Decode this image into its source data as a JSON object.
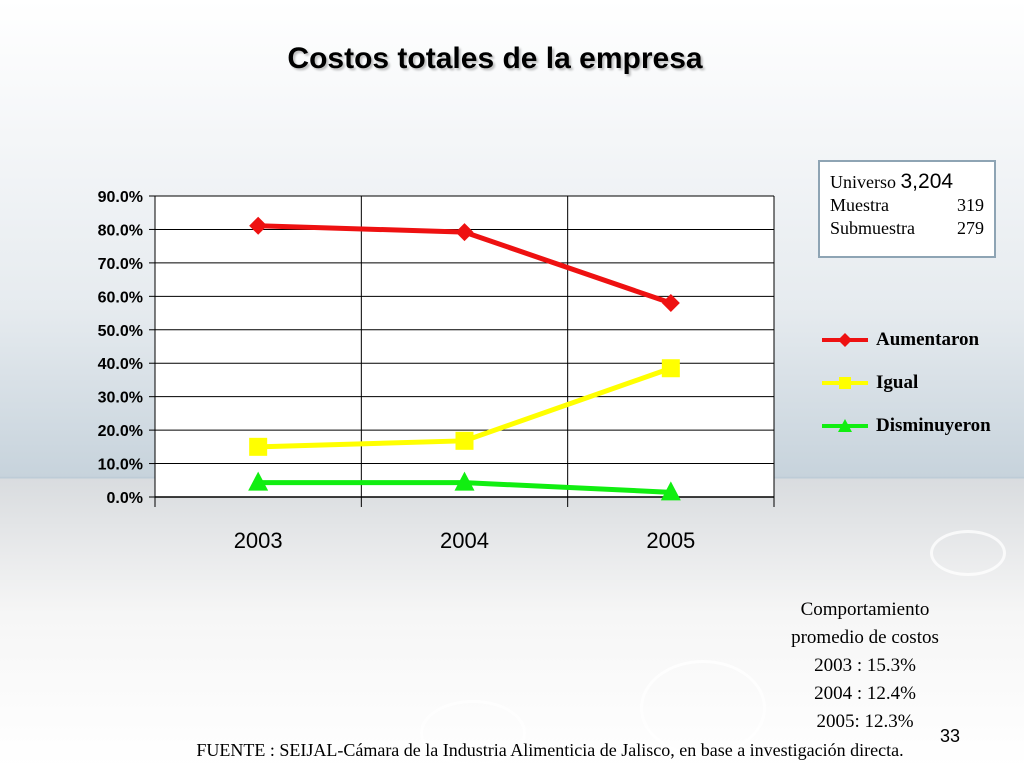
{
  "slide": {
    "title": "Costos totales de la empresa",
    "page_number": "33",
    "source": "FUENTE : SEIJAL-Cámara de la Industria Alimenticia de Jalisco,  en base a investigación directa."
  },
  "infobox": {
    "universo_label": "Universo",
    "universo_value": "3,204",
    "muestra_label": "Muestra",
    "muestra_value": "319",
    "submuestra_label": "Submuestra",
    "submuestra_value": "279"
  },
  "average": {
    "title_line1": "Comportamiento",
    "title_line2": "promedio de costos",
    "lines": [
      "2003 : 15.3%",
      "2004 : 12.4%",
      "2005: 12.3%"
    ]
  },
  "chart_data": {
    "type": "line",
    "title": "Costos totales de la empresa",
    "categories": [
      "2003",
      "2004",
      "2005"
    ],
    "ylim": [
      0,
      90
    ],
    "yticks": [
      "0.0%",
      "10.0%",
      "20.0%",
      "30.0%",
      "40.0%",
      "50.0%",
      "60.0%",
      "70.0%",
      "80.0%",
      "90.0%"
    ],
    "grid": true,
    "legend_position": "right",
    "series": [
      {
        "name": "Aumentaron",
        "values": [
          81.1,
          79.2,
          58.0
        ],
        "color": "#ee1111",
        "marker": "diamond"
      },
      {
        "name": "Igual",
        "values": [
          15.0,
          16.8,
          38.5
        ],
        "color": "#ffff00",
        "marker": "square"
      },
      {
        "name": "Disminuyeron",
        "values": [
          4.3,
          4.3,
          1.4
        ],
        "color": "#11ee11",
        "marker": "triangle"
      }
    ]
  }
}
